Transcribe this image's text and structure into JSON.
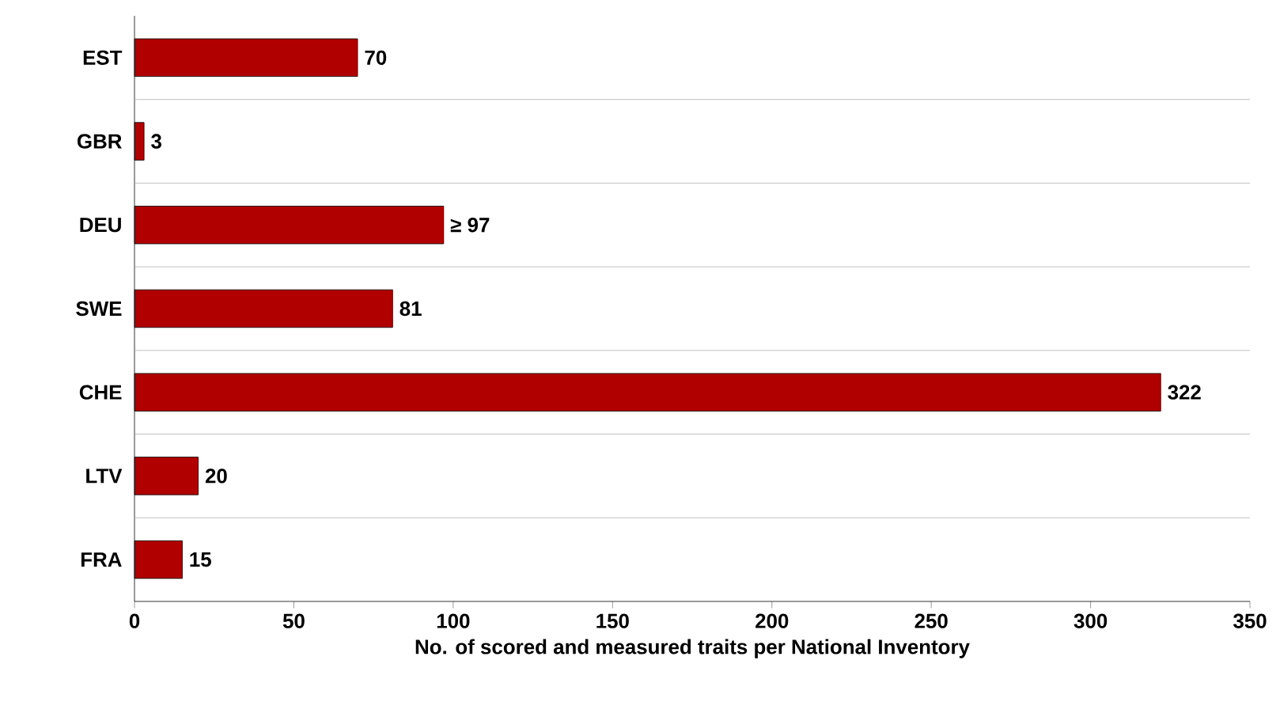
{
  "chart_data": {
    "type": "bar",
    "orientation": "horizontal",
    "xlabel": "No. of scored and measured traits per National Inventory",
    "categories": [
      "EST",
      "GBR",
      "DEU",
      "SWE",
      "CHE",
      "LTV",
      "FRA"
    ],
    "values": [
      70,
      3,
      97,
      81,
      322,
      20,
      15
    ],
    "value_labels": [
      "70",
      "3",
      "≥ 97",
      "81",
      "322",
      "20",
      "15"
    ],
    "color": "#b00000",
    "xlim": [
      0,
      350
    ],
    "xticks": [
      0,
      50,
      100,
      150,
      200,
      250,
      300,
      350
    ],
    "grid": "y"
  }
}
